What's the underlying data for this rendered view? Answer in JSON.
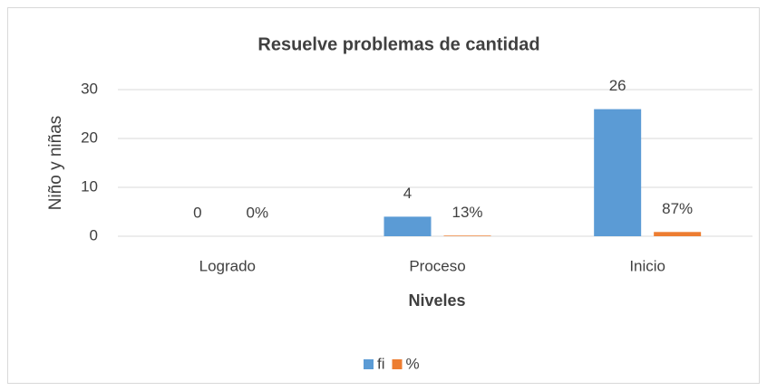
{
  "chart_data": {
    "type": "bar",
    "title": "Resuelve problemas de cantidad",
    "x_label": "Niveles",
    "y_label": "Niño y niñas",
    "categories": [
      "Logrado",
      "Proceso",
      "Inicio"
    ],
    "series": [
      {
        "name": "fi",
        "color": "#5b9bd5",
        "values": [
          0,
          4,
          26
        ]
      },
      {
        "name": "%",
        "color": "#ed7d31",
        "values": [
          0,
          0.13,
          0.87
        ],
        "value_labels": [
          "0%",
          "13%",
          "87%"
        ]
      }
    ],
    "ylim": [
      0,
      30
    ],
    "yticks": [
      0,
      10,
      20,
      30
    ],
    "grid": true,
    "legend": "bottom"
  }
}
